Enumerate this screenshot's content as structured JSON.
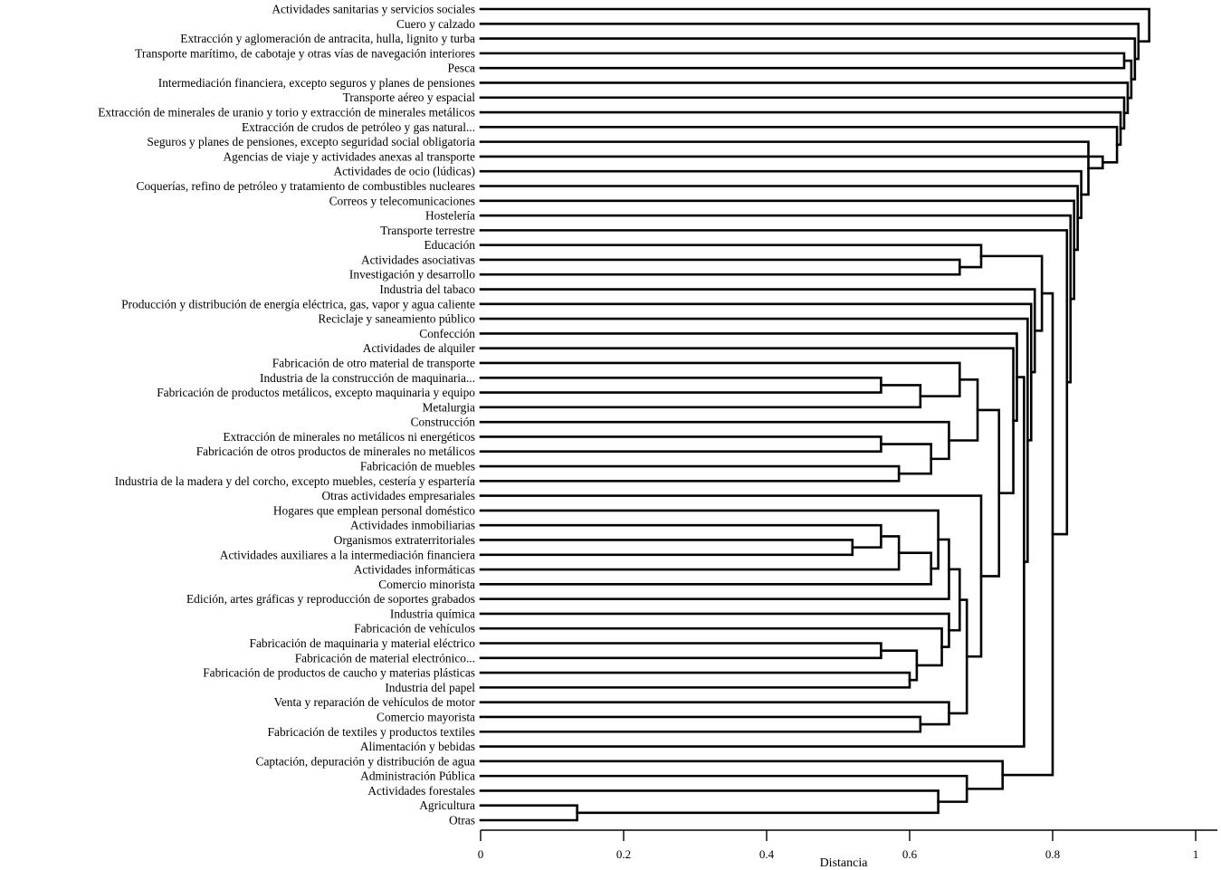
{
  "chart_data": {
    "type": "dendrogram",
    "orientation": "horizontal",
    "xlabel": "Distancia",
    "xlim": [
      0,
      1
    ],
    "xticks": [
      0,
      0.2,
      0.4,
      0.6,
      0.8,
      1
    ],
    "xtick_labels": [
      "0",
      "0.2",
      "0.4",
      "0.6",
      "0.8",
      "1"
    ],
    "leaves": [
      "Actividades sanitarias y servicios sociales",
      "Cuero y calzado",
      "Extracción y aglomeración de antracita, hulla, lignito y turba",
      "Transporte marítimo, de cabotaje y otras vías de navegación interiores",
      "Pesca",
      "Intermediación financiera, excepto seguros y planes de pensiones",
      "Transporte aéreo y espacial",
      "Extracción de minerales de uranio y torio y extracción de minerales metálicos",
      "Extracción de crudos de petróleo y gas natural...",
      "Seguros y planes de pensiones, excepto seguridad social obligatoria",
      "Agencias de viaje y actividades anexas al transporte",
      "Actividades de ocio (lúdicas)",
      "Coquerías, refino de petróleo y tratamiento de combustibles nucleares",
      "Correos y telecomunicaciones",
      "Hostelería",
      "Transporte terrestre",
      "Educación",
      "Actividades asociativas",
      "Investigación y desarrollo",
      "Industria del tabaco",
      "Producción y distribución de energía eléctrica, gas, vapor y agua caliente",
      "Reciclaje y saneamiento público",
      "Confección",
      "Actividades de alquiler",
      "Fabricación de otro material de transporte",
      "Industria de la construcción de maquinaria...",
      "Fabricación de productos metálicos, excepto maquinaria y equipo",
      "Metalurgia",
      "Construcción",
      "Extracción de minerales no metálicos ni energéticos",
      "Fabricación de otros productos de minerales no metálicos",
      "Fabricación de muebles",
      "Industria de la madera y del corcho, excepto muebles, cestería y espartería",
      "Otras actividades empresariales",
      "Hogares que emplean personal doméstico",
      "Actividades inmobiliarias",
      "Organismos extraterritoriales",
      "Actividades auxiliares a la intermediación financiera",
      "Actividades informáticas",
      "Comercio minorista",
      "Edición, artes gráficas y reproducción de soportes grabados",
      "Industria química",
      "Fabricación de vehículos",
      "Fabricación de maquinaria y material eléctrico",
      "Fabricación de material electrónico...",
      "Fabricación de productos de caucho y materias plásticas",
      "Industria del papel",
      "Venta y reparación de vehículos de motor",
      "Comercio mayorista",
      "Fabricación de textiles y productos textiles",
      "Alimentación y bebidas",
      "Captación, depuración y distribución de agua",
      "Administración Pública",
      "Actividades forestales",
      "Agricultura",
      "Otras"
    ],
    "merges": [
      {
        "id": "m1",
        "a": "Agricultura",
        "b": "Otras",
        "height": 0.135
      },
      {
        "id": "m2",
        "a": "Actividades forestales",
        "b": "m1",
        "height": 0.64
      },
      {
        "id": "m3",
        "a": "Administración Pública",
        "b": "m2",
        "height": 0.68
      },
      {
        "id": "m4",
        "a": "Captación, depuración y distribución de agua",
        "b": "m3",
        "height": 0.73
      },
      {
        "id": "m5",
        "a": "Organismos extraterritoriales",
        "b": "Actividades auxiliares a la intermediación financiera",
        "height": 0.52
      },
      {
        "id": "m6",
        "a": "Actividades inmobiliarias",
        "b": "m5",
        "height": 0.56
      },
      {
        "id": "m7",
        "a": "m6",
        "b": "Actividades informáticas",
        "height": 0.585
      },
      {
        "id": "m8",
        "a": "m7",
        "b": "Comercio minorista",
        "height": 0.63
      },
      {
        "id": "m9",
        "a": "Hogares que emplean personal doméstico",
        "b": "m8",
        "height": 0.64
      },
      {
        "id": "m10",
        "a": "m9",
        "b": "Edición, artes gráficas y reproducción de soportes grabados",
        "height": 0.655
      },
      {
        "id": "m11",
        "a": "Fabricación de maquinaria y material eléctrico",
        "b": "Fabricación de material electrónico...",
        "height": 0.56
      },
      {
        "id": "m12",
        "a": "Fabricación de productos de caucho y materias plásticas",
        "b": "Industria del papel",
        "height": 0.6
      },
      {
        "id": "m13",
        "a": "m11",
        "b": "m12",
        "height": 0.61
      },
      {
        "id": "m14",
        "a": "Fabricación de vehículos",
        "b": "m13",
        "height": 0.645
      },
      {
        "id": "m15",
        "a": "Industria química",
        "b": "m14",
        "height": 0.655
      },
      {
        "id": "m16",
        "a": "m10",
        "b": "m15",
        "height": 0.67
      },
      {
        "id": "m17",
        "a": "Comercio mayorista",
        "b": "Fabricación de textiles y productos textiles",
        "height": 0.615
      },
      {
        "id": "m18",
        "a": "Venta y reparación de vehículos de motor",
        "b": "m17",
        "height": 0.655
      },
      {
        "id": "m19",
        "a": "m16",
        "b": "m18",
        "height": 0.68
      },
      {
        "id": "m20",
        "a": "Otras actividades empresariales",
        "b": "m19",
        "height": 0.7
      },
      {
        "id": "m21",
        "a": "Industria de la construcción de maquinaria...",
        "b": "Fabricación de productos metálicos, excepto maquinaria y equipo",
        "height": 0.56
      },
      {
        "id": "m22",
        "a": "m21",
        "b": "Metalurgia",
        "height": 0.615
      },
      {
        "id": "m23",
        "a": "Fabricación de otro material de transporte",
        "b": "m22",
        "height": 0.67
      },
      {
        "id": "m24",
        "a": "Extracción de minerales no metálicos ni energéticos",
        "b": "Fabricación de otros productos de minerales no metálicos",
        "height": 0.56
      },
      {
        "id": "m25",
        "a": "Fabricación de muebles",
        "b": "Industria de la madera y del corcho, excepto muebles, cestería y espartería",
        "height": 0.585
      },
      {
        "id": "m26",
        "a": "m24",
        "b": "m25",
        "height": 0.63
      },
      {
        "id": "m27",
        "a": "Construcción",
        "b": "m26",
        "height": 0.655
      },
      {
        "id": "m28",
        "a": "m23",
        "b": "m27",
        "height": 0.695
      },
      {
        "id": "m29",
        "a": "m28",
        "b": "m20",
        "height": 0.725
      },
      {
        "id": "m30",
        "a": "Actividades de alquiler",
        "b": "m29",
        "height": 0.745
      },
      {
        "id": "m31",
        "a": "Confección",
        "b": "m30",
        "height": 0.75
      },
      {
        "id": "m32",
        "a": "m31",
        "b": "Alimentación y bebidas",
        "height": 0.76
      },
      {
        "id": "m33",
        "a": "Reciclaje y saneamiento público",
        "b": "m32",
        "height": 0.765
      },
      {
        "id": "m34",
        "a": "Producción y distribución de energía eléctrica, gas, vapor y agua caliente",
        "b": "m33",
        "height": 0.77
      },
      {
        "id": "m35",
        "a": "Industria del tabaco",
        "b": "m34",
        "height": 0.775
      },
      {
        "id": "m36",
        "a": "Actividades asociativas",
        "b": "Investigación y desarrollo",
        "height": 0.67
      },
      {
        "id": "m37",
        "a": "Educación",
        "b": "m36",
        "height": 0.7
      },
      {
        "id": "m38",
        "a": "m37",
        "b": "m35",
        "height": 0.785
      },
      {
        "id": "m39",
        "a": "m38",
        "b": "m4",
        "height": 0.8
      },
      {
        "id": "m40",
        "a": "Transporte terrestre",
        "b": "m39",
        "height": 0.82
      },
      {
        "id": "m41",
        "a": "Hostelería",
        "b": "m40",
        "height": 0.825
      },
      {
        "id": "m42",
        "a": "Correos y telecomunicaciones",
        "b": "m41",
        "height": 0.83
      },
      {
        "id": "m43",
        "a": "Coquerías, refino de petróleo y tratamiento de combustibles nucleares",
        "b": "m42",
        "height": 0.835
      },
      {
        "id": "m44",
        "a": "Actividades de ocio (lúdicas)",
        "b": "m43",
        "height": 0.84
      },
      {
        "id": "m45",
        "a": "Seguros y planes de pensiones, excepto seguridad social obligatoria",
        "b": "m44",
        "height": 0.85
      },
      {
        "id": "m46",
        "a": "Agencias de viaje y actividades anexas al transporte",
        "b": "m45",
        "height": 0.87
      },
      {
        "id": "m47",
        "a": "Extracción de crudos de petróleo y gas natural...",
        "b": "m46",
        "height": 0.89
      },
      {
        "id": "m48",
        "a": "Extracción de minerales de uranio y torio y extracción de minerales metálicos",
        "b": "m47",
        "height": 0.895
      },
      {
        "id": "m49",
        "a": "Transporte aéreo y espacial",
        "b": "m48",
        "height": 0.9
      },
      {
        "id": "m50",
        "a": "Intermediación financiera, excepto seguros y planes de pensiones",
        "b": "m49",
        "height": 0.905
      },
      {
        "id": "m51",
        "a": "Transporte marítimo, de cabotaje y otras vías de navegación interiores",
        "b": "Pesca",
        "height": 0.9
      },
      {
        "id": "m52",
        "a": "m51",
        "b": "m50",
        "height": 0.91
      },
      {
        "id": "m53",
        "a": "Extracción y aglomeración de antracita, hulla, lignito y turba",
        "b": "m52",
        "height": 0.915
      },
      {
        "id": "m54",
        "a": "Cuero y calzado",
        "b": "m53",
        "height": 0.92
      },
      {
        "id": "m55",
        "a": "Actividades sanitarias y servicios sociales",
        "b": "m54",
        "height": 0.935
      }
    ]
  }
}
